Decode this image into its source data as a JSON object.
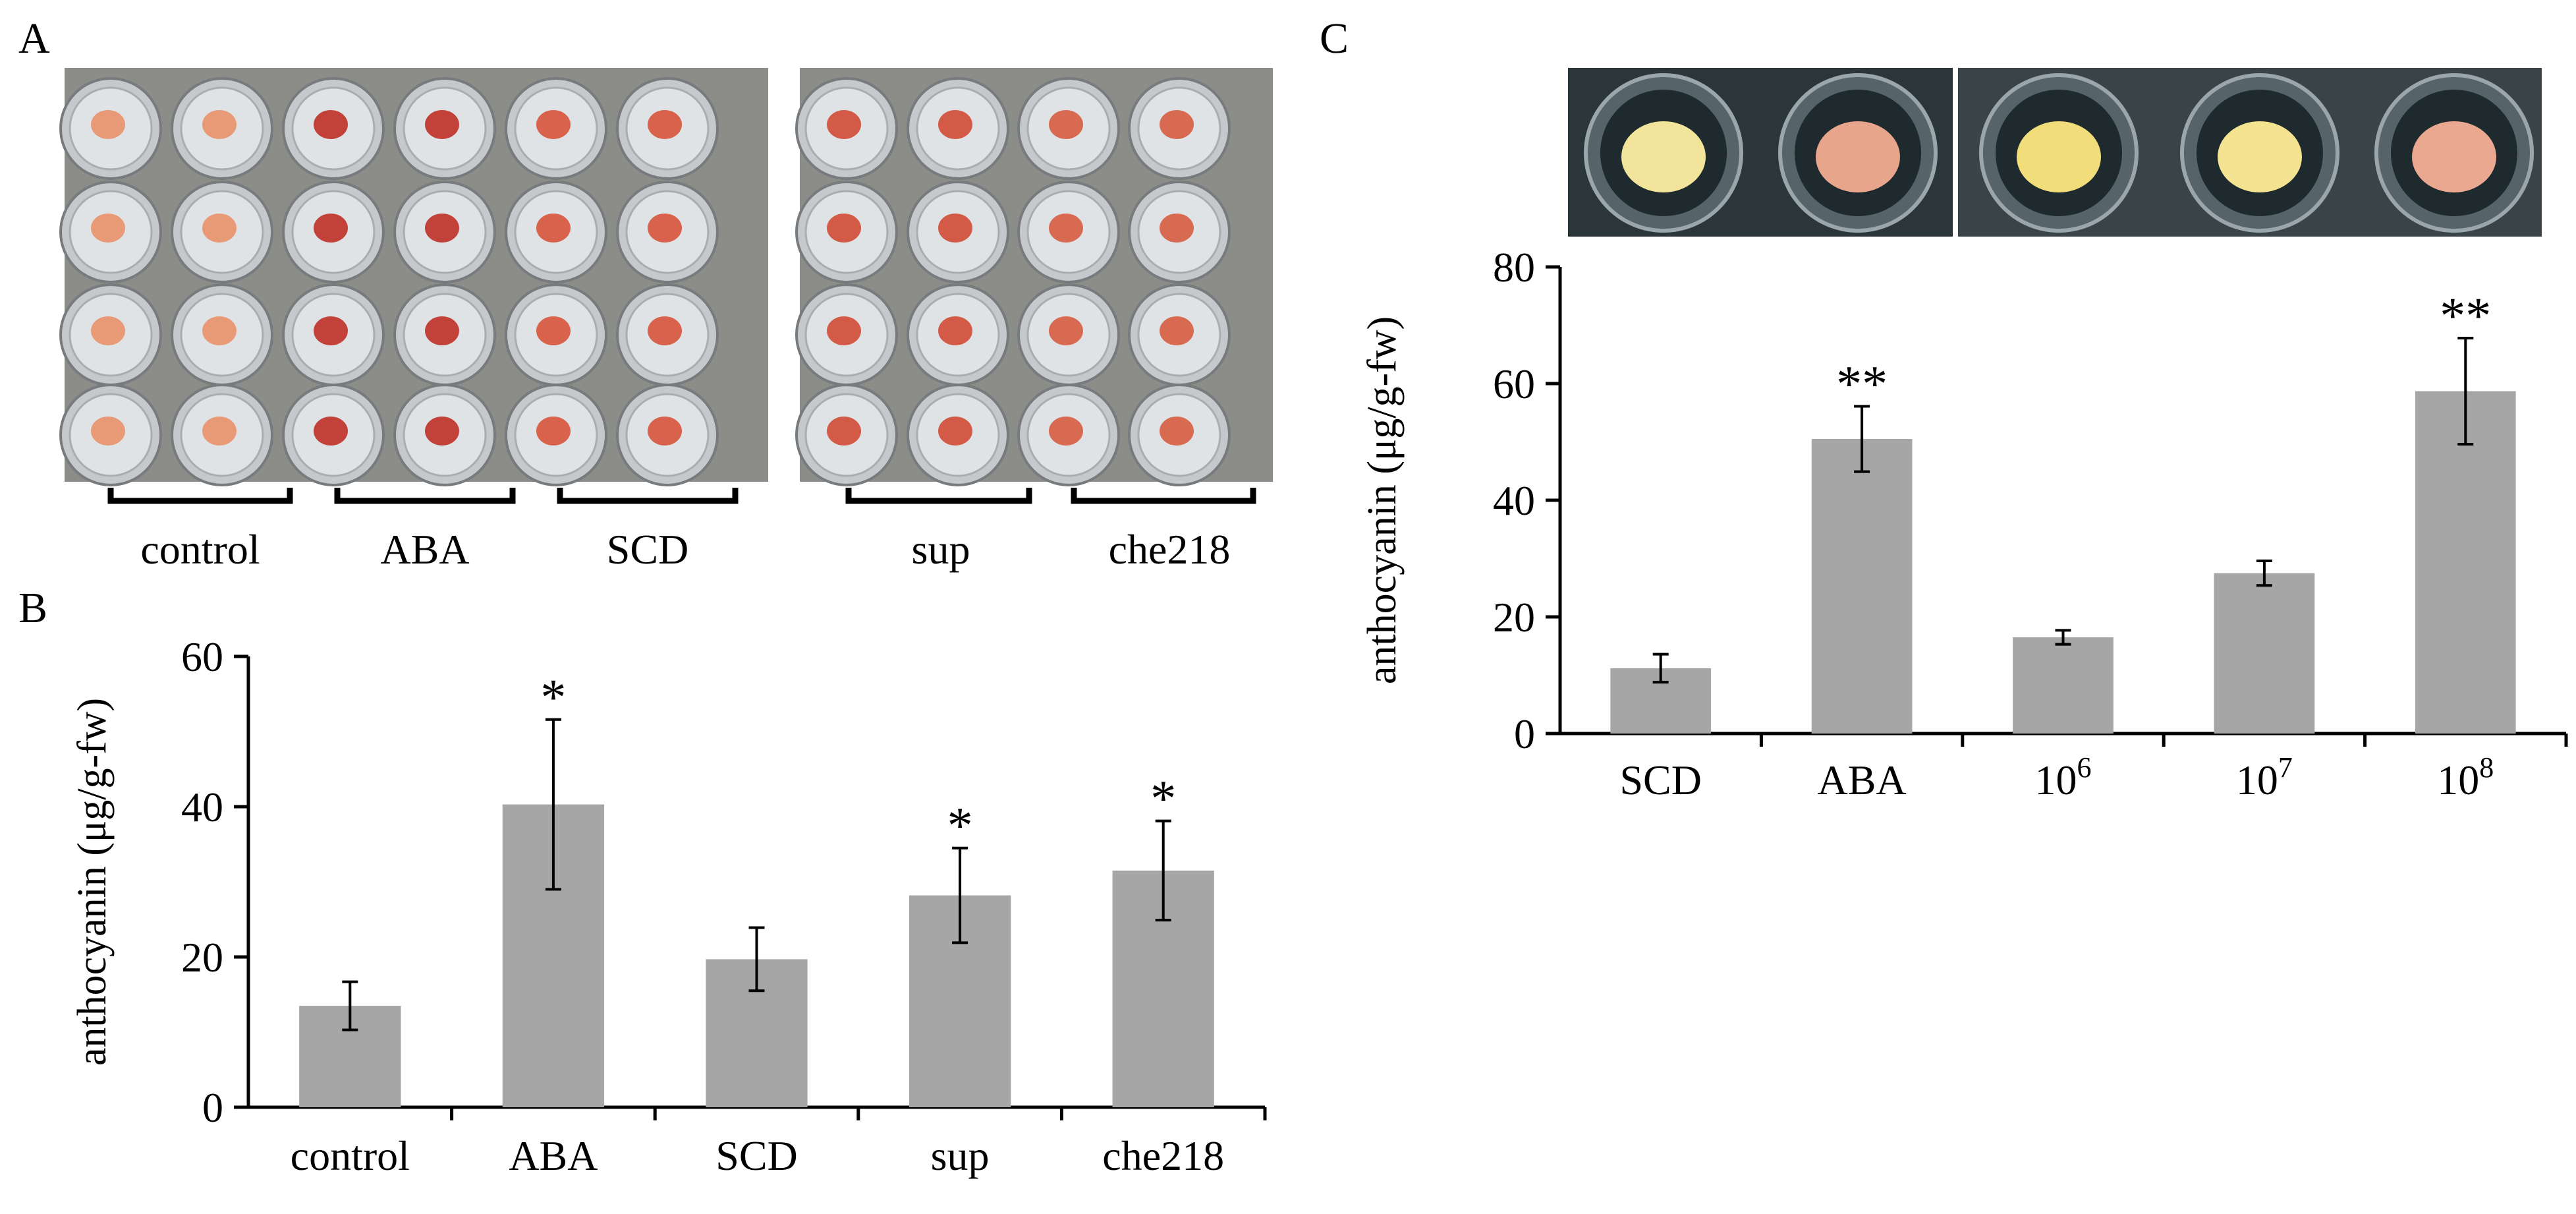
{
  "panel_labels": {
    "a": "A",
    "b": "B",
    "c": "C"
  },
  "panel_a": {
    "plate_left_groups": [
      "control",
      "ABA",
      "SCD"
    ],
    "plate_right_groups": [
      "sup",
      "che218"
    ],
    "colors": {
      "pale_callus": "#e89a76",
      "red_callus": "#c2423a",
      "plate": "#8c8d88"
    }
  },
  "panel_c_photo": {
    "colors": {
      "yellow_callus": "#f2e49a",
      "pink_callus": "#e7a58c",
      "dark_well": "#1f2a2e"
    }
  },
  "chart_data": [
    {
      "id": "B",
      "type": "bar",
      "title": "",
      "xlabel": "",
      "ylabel": "anthocyanin (μg/g-fw)",
      "ylim": [
        0,
        60
      ],
      "yticks": [
        "0",
        "20",
        "40",
        "60"
      ],
      "categories": [
        "control",
        "ABA",
        "SCD",
        "sup",
        "che218"
      ],
      "values": [
        13.5,
        40.3,
        19.7,
        28.2,
        31.5
      ],
      "errors": [
        3.2,
        11.3,
        4.2,
        6.3,
        6.6
      ],
      "significance": [
        "",
        "*",
        "",
        "*",
        "*"
      ],
      "bar_color": "#a6a6a6",
      "grid": false
    },
    {
      "id": "C",
      "type": "bar",
      "title": "",
      "xlabel": "",
      "ylabel": "anthocyanin (μg/g-fw)",
      "ylim": [
        0,
        80
      ],
      "yticks": [
        "0",
        "20",
        "40",
        "60",
        "80"
      ],
      "categories": [
        "SCD",
        "ABA",
        "10",
        "10",
        "10"
      ],
      "category_superscripts": [
        "",
        "",
        "6",
        "7",
        "8"
      ],
      "values": [
        11.2,
        50.5,
        16.5,
        27.5,
        58.7
      ],
      "errors": [
        2.4,
        5.6,
        1.2,
        2.1,
        9.1
      ],
      "significance": [
        "",
        "**",
        "",
        "",
        "**"
      ],
      "bar_color": "#a6a6a6",
      "grid": false
    }
  ]
}
